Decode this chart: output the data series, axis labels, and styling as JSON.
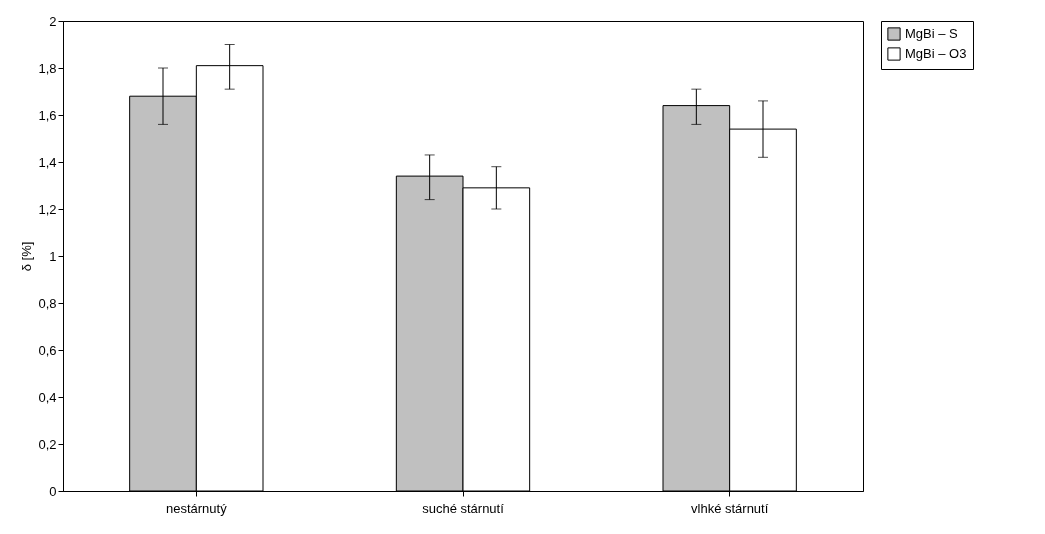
{
  "chart_data": {
    "type": "bar",
    "ylabel": "δ [%]",
    "categories": [
      "nestárnutý",
      "suché stárnutí",
      "vlhké stárnutí"
    ],
    "series": [
      {
        "name": "MgBi – S",
        "color": "#c0c0c0",
        "values": [
          1.68,
          1.34,
          1.64
        ],
        "errors": [
          [
            1.56,
            1.8
          ],
          [
            1.24,
            1.43
          ],
          [
            1.56,
            1.71
          ]
        ]
      },
      {
        "name": "MgBi – O3",
        "color": "#ffffff",
        "values": [
          1.81,
          1.29,
          1.54
        ],
        "errors": [
          [
            1.71,
            1.9
          ],
          [
            1.2,
            1.38
          ],
          [
            1.42,
            1.66
          ]
        ]
      }
    ],
    "ylim": [
      0,
      2
    ],
    "yticks": [
      0,
      {
        "value": 0.2,
        "label": "0,2"
      },
      {
        "value": 0.4,
        "label": "0,4"
      },
      {
        "value": 0.6,
        "label": "0,6"
      },
      {
        "value": 0.8,
        "label": "0,8"
      },
      1,
      {
        "value": 1.2,
        "label": "1,2"
      },
      {
        "value": 1.4,
        "label": "1,4"
      },
      {
        "value": 1.6,
        "label": "1,6"
      },
      {
        "value": 1.8,
        "label": "1,8"
      },
      2
    ],
    "grid": false,
    "legend": "right"
  }
}
